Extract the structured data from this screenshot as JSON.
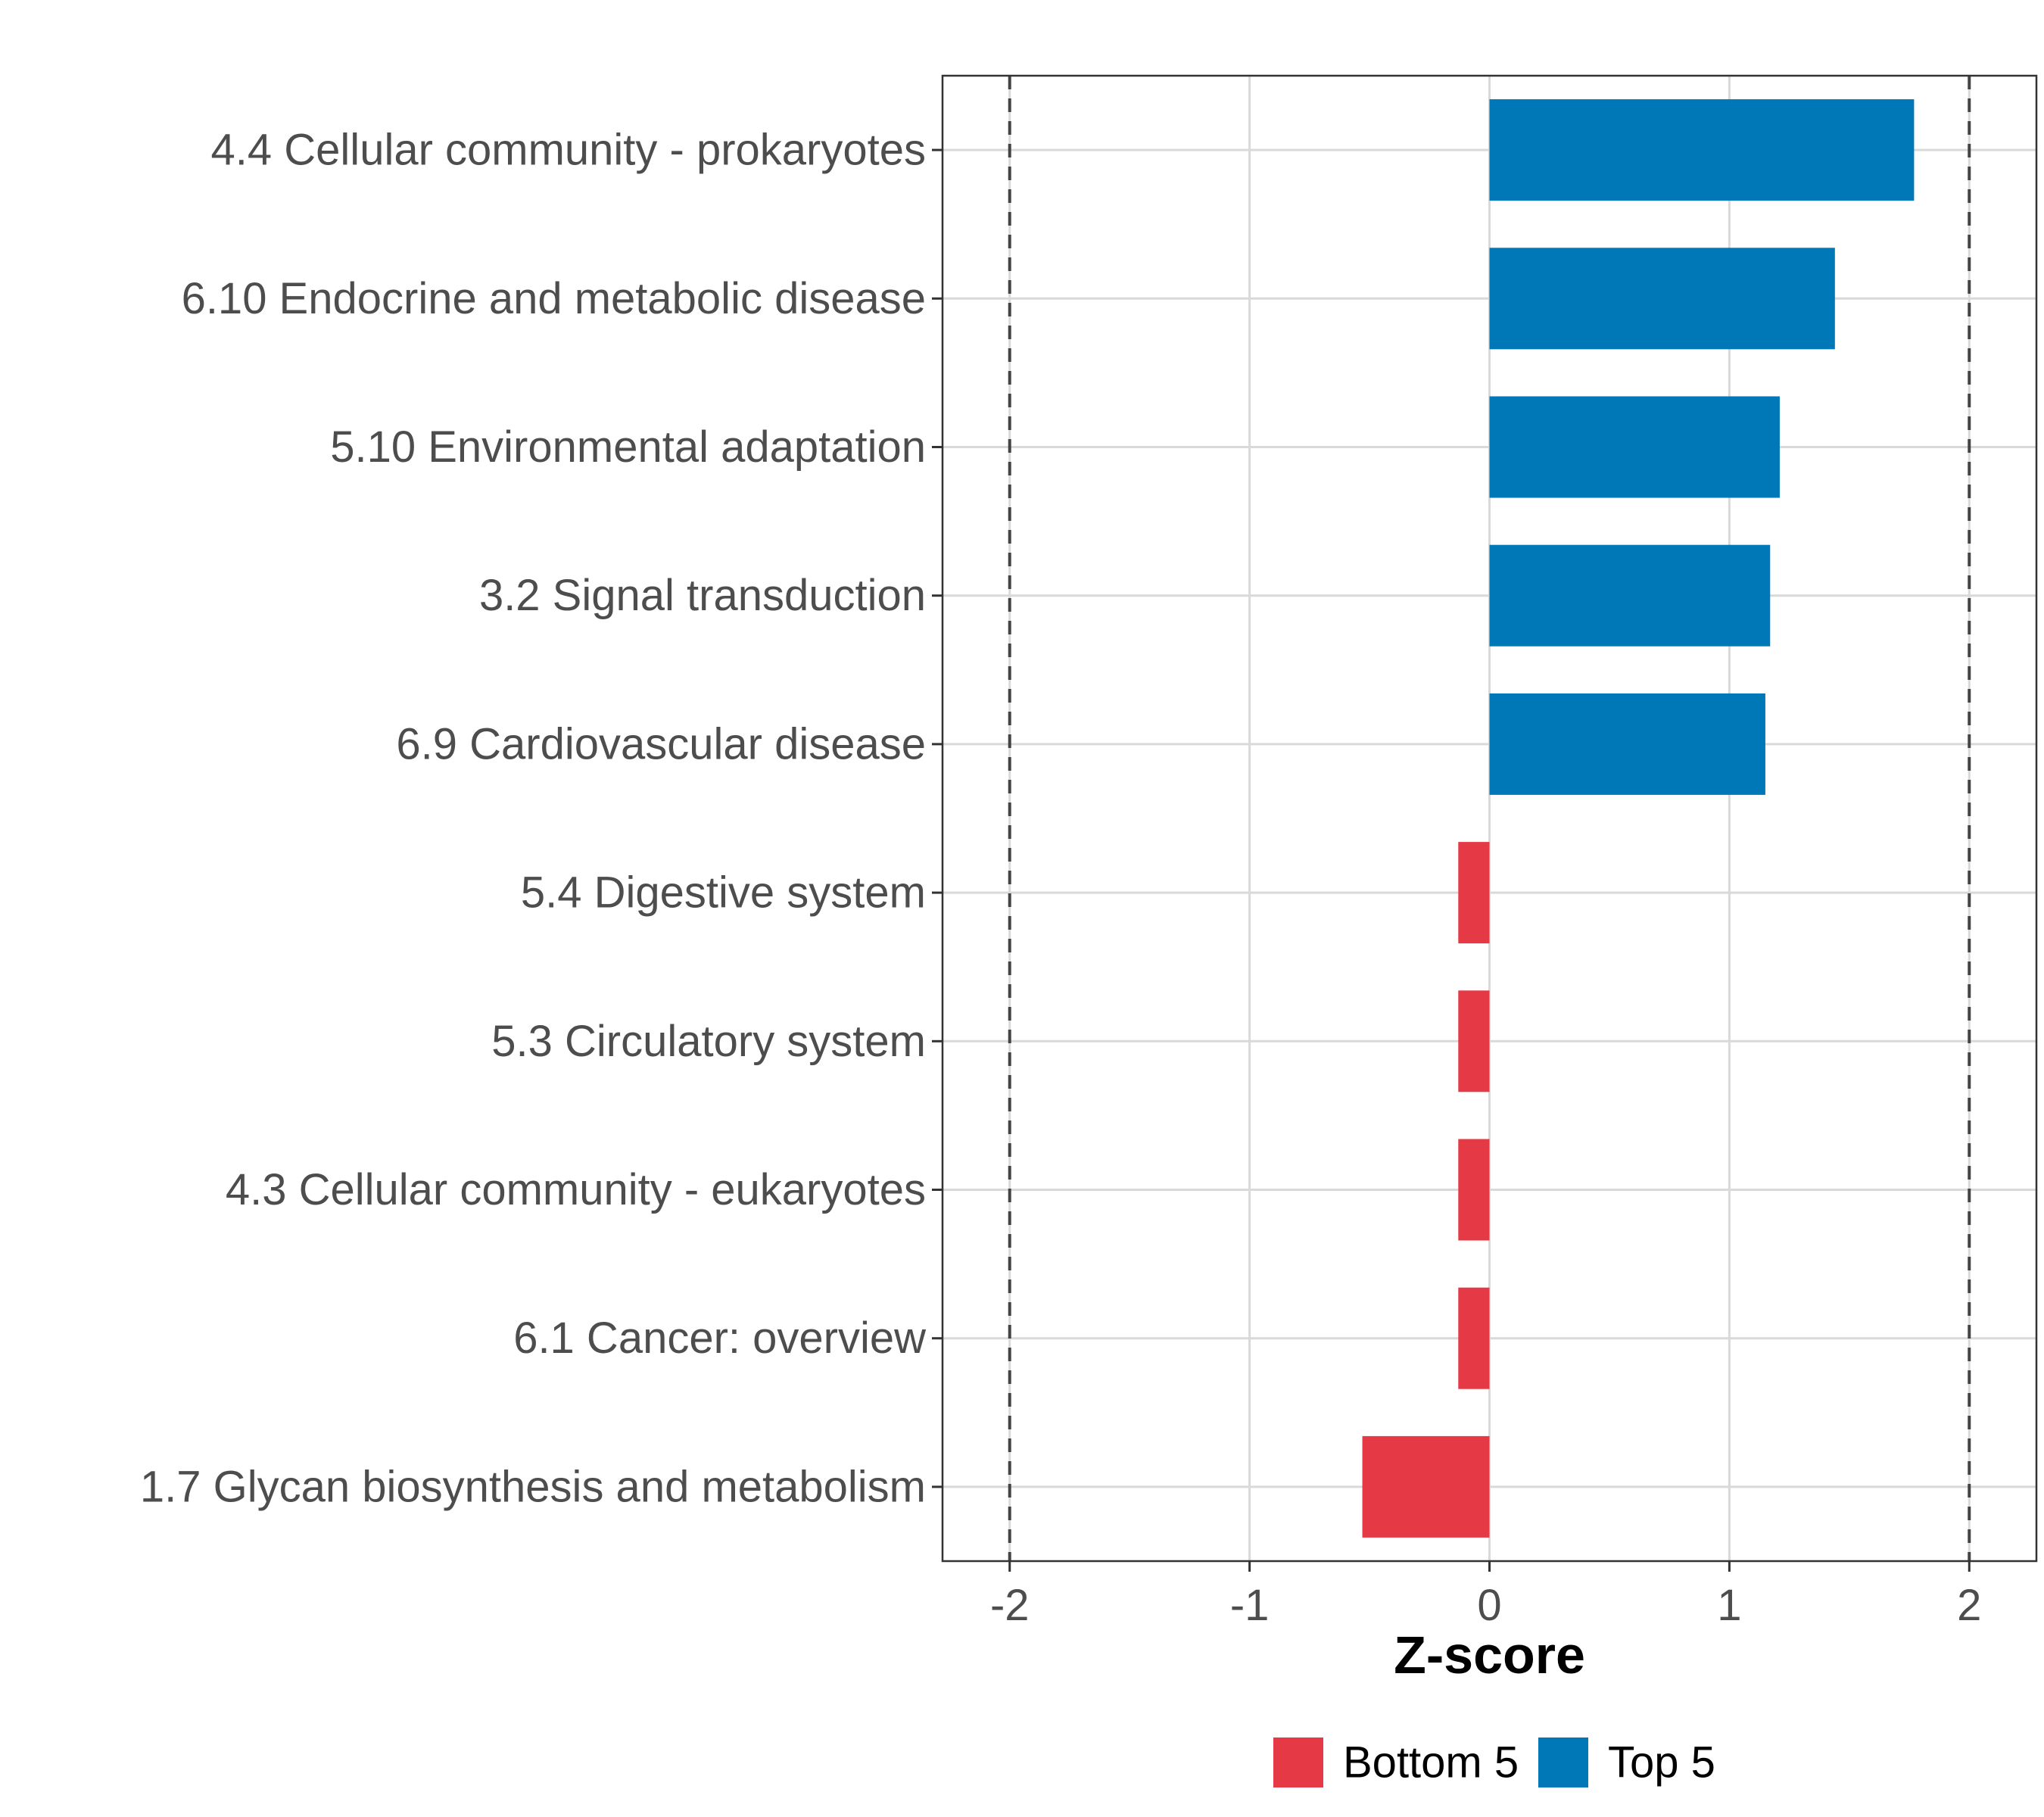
{
  "chart_data": {
    "type": "bar",
    "orientation": "horizontal",
    "categories": [
      "4.4 Cellular community - prokaryotes",
      "6.10 Endocrine and metabolic disease",
      "5.10 Environmental adaptation",
      "3.2 Signal transduction",
      "6.9 Cardiovascular disease",
      "5.4 Digestive system",
      "5.3 Circulatory system",
      "4.3 Cellular community - eukaryotes",
      "6.1 Cancer: overview",
      "1.7 Glycan biosynthesis and metabolism"
    ],
    "values": [
      1.77,
      1.44,
      1.21,
      1.17,
      1.15,
      -0.13,
      -0.13,
      -0.13,
      -0.13,
      -0.53
    ],
    "groups": [
      "Top 5",
      "Top 5",
      "Top 5",
      "Top 5",
      "Top 5",
      "Bottom 5",
      "Bottom 5",
      "Bottom 5",
      "Bottom 5",
      "Bottom 5"
    ],
    "xlabel": "Z-score",
    "ylabel": "",
    "xlim": [
      -2.28,
      2.28
    ],
    "xticks": [
      -2,
      -1,
      0,
      1,
      2
    ],
    "xtick_labels": [
      "-2",
      "-1",
      "0",
      "1",
      "2"
    ],
    "reference_lines": [
      -2,
      2
    ],
    "grid": true,
    "legend": [
      {
        "label": "Bottom 5",
        "color": "#E63946"
      },
      {
        "label": "Top 5",
        "color": "#0077B6"
      }
    ],
    "legend_position": "bottom"
  }
}
